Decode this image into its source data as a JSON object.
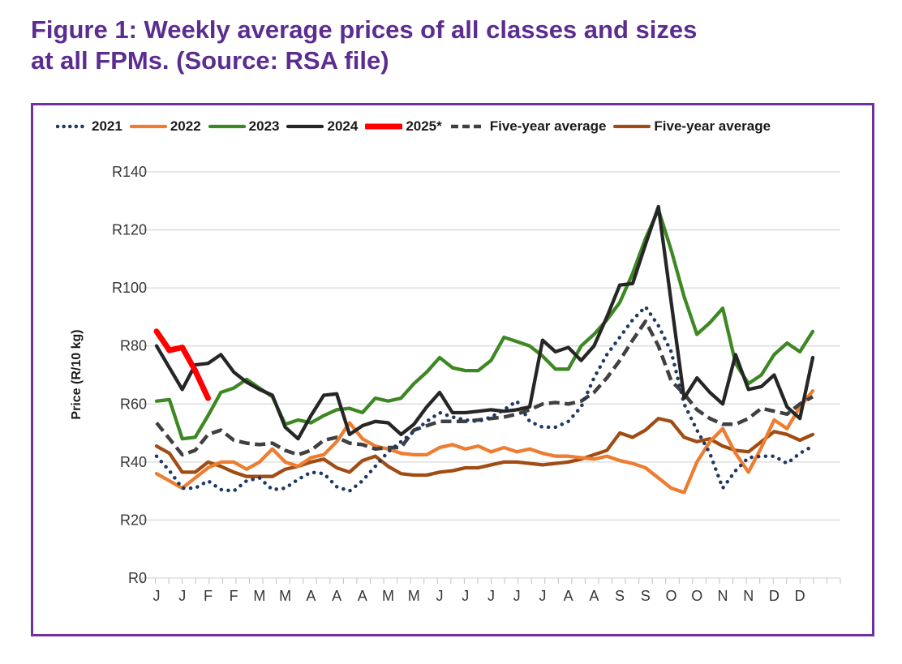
{
  "title": {
    "line1": "Figure 1: Weekly average prices of all classes and sizes",
    "line2": "at all FPMs. (Source: RSA file)"
  },
  "colors": {
    "title_purple": "#5C2D91",
    "border_purple": "#7030A0",
    "gridline": "#D9D9D9",
    "axis_tick": "#BFBFBF",
    "tick_text": "#363636"
  },
  "chart_data": {
    "type": "line",
    "title": "Weekly average prices of all classes and sizes at all FPMs",
    "source": "RSA file",
    "xlabel": "",
    "ylabel": "Price (R/10 kg)",
    "ylim": [
      0,
      140
    ],
    "grid": "horizontal",
    "legend_position": "top",
    "n_weeks": 52,
    "y_tick_labels": [
      "R0",
      "R20",
      "R40",
      "R60",
      "R80",
      "R100",
      "R120",
      "R140"
    ],
    "y_tick_values": [
      0,
      20,
      40,
      60,
      80,
      100,
      120,
      140
    ],
    "x_tick_labels": [
      "J",
      "J",
      "F",
      "F",
      "M",
      "M",
      "A",
      "A",
      "A",
      "M",
      "M",
      "J",
      "J",
      "J",
      "J",
      "J",
      "A",
      "A",
      "S",
      "S",
      "O",
      "O",
      "N",
      "N",
      "D",
      "D"
    ],
    "series": [
      {
        "name": "2021",
        "color": "#1F3864",
        "style": "dotted",
        "values": [
          42,
          37,
          31,
          31,
          33.5,
          30.5,
          30,
          33.5,
          34.5,
          30.5,
          31,
          34,
          36.5,
          36,
          31.5,
          30,
          33.5,
          38.5,
          43.5,
          47,
          50.5,
          54,
          57,
          55.5,
          54.5,
          54,
          55.5,
          58,
          61,
          54,
          52,
          52,
          54,
          59,
          69,
          77,
          83,
          89,
          93.5,
          87,
          78,
          60,
          51,
          43,
          31,
          37,
          41.5,
          42,
          42,
          39.5,
          43,
          45.5
        ]
      },
      {
        "name": "2022",
        "color": "#ED7D31",
        "style": "solid",
        "values": [
          36,
          33.5,
          31,
          34.5,
          38,
          40,
          40,
          37.5,
          40,
          44.5,
          40,
          38.5,
          41.5,
          42.5,
          47,
          53.5,
          48,
          45.5,
          44.5,
          43,
          42.5,
          42.5,
          45,
          46,
          44.5,
          45.5,
          43.5,
          45,
          43.5,
          44.5,
          43,
          42,
          42,
          41.5,
          41,
          42,
          40.5,
          39.5,
          38,
          34.5,
          31,
          29.5,
          40,
          47,
          51.5,
          43,
          36.5,
          45,
          54.5,
          51.5,
          59,
          64.5
        ]
      },
      {
        "name": "2023",
        "color": "#3E8824",
        "style": "solid",
        "values": [
          61,
          61.5,
          48,
          48.5,
          56,
          64,
          65.5,
          68.5,
          65.5,
          62.5,
          53,
          54.5,
          53.5,
          56,
          58,
          58.5,
          57,
          62,
          61,
          62,
          67,
          71,
          76,
          72.5,
          71.5,
          71.5,
          75,
          83,
          81.5,
          80,
          76.5,
          72,
          72,
          80,
          84,
          89,
          95,
          105,
          117,
          127,
          113,
          97,
          84,
          88,
          93,
          74,
          67,
          70,
          77,
          81,
          78,
          85
        ]
      },
      {
        "name": "2024",
        "color": "#262626",
        "style": "solid",
        "values": [
          80,
          72.5,
          65,
          73.5,
          74,
          77,
          71,
          67.5,
          65,
          63,
          52,
          48,
          56,
          63,
          63.5,
          49.5,
          52.5,
          54,
          53.5,
          49.5,
          53,
          59,
          64,
          57,
          57,
          57.5,
          58,
          57.5,
          58,
          59,
          82,
          78,
          79.5,
          75,
          80,
          90,
          101,
          101.5,
          115,
          128,
          95,
          62,
          69,
          64,
          60,
          77,
          65,
          66,
          70,
          59,
          55,
          76
        ]
      },
      {
        "name": "2025*",
        "color": "#FF0000",
        "style": "solid-thick",
        "values": [
          85,
          78.5,
          79.5,
          71.5,
          62
        ]
      },
      {
        "name": "Five-year average",
        "color": "#404040",
        "style": "dashed",
        "values": [
          53.5,
          48,
          42.5,
          44,
          49.5,
          51,
          47.5,
          46.5,
          46,
          46.5,
          44,
          42.5,
          44,
          47.5,
          48.5,
          46.5,
          46,
          44.5,
          45,
          45,
          51,
          52.5,
          54,
          54,
          54,
          54.5,
          55,
          55.5,
          56.5,
          58,
          60,
          60.5,
          60,
          61,
          64,
          69,
          75,
          82,
          88.5,
          80,
          68,
          63.5,
          58,
          55,
          53,
          53,
          55,
          58.5,
          57.5,
          56.5,
          60,
          62.5
        ]
      },
      {
        "name": "Five-year average",
        "color": "#A04D15",
        "style": "solid",
        "values": [
          45.5,
          43,
          36.5,
          36.5,
          40,
          38.5,
          36.5,
          35,
          35,
          35,
          37.5,
          38.5,
          40,
          41,
          38,
          36.5,
          40.5,
          42,
          38.5,
          36,
          35.5,
          35.5,
          36.5,
          37,
          38,
          38,
          39,
          40,
          40,
          39.5,
          39,
          39.5,
          40,
          41,
          42.5,
          44,
          50,
          48.5,
          51,
          55,
          54,
          48.5,
          47,
          48,
          45.5,
          44,
          43.5,
          47,
          50.5,
          49.5,
          47.5,
          49.5
        ]
      }
    ]
  }
}
